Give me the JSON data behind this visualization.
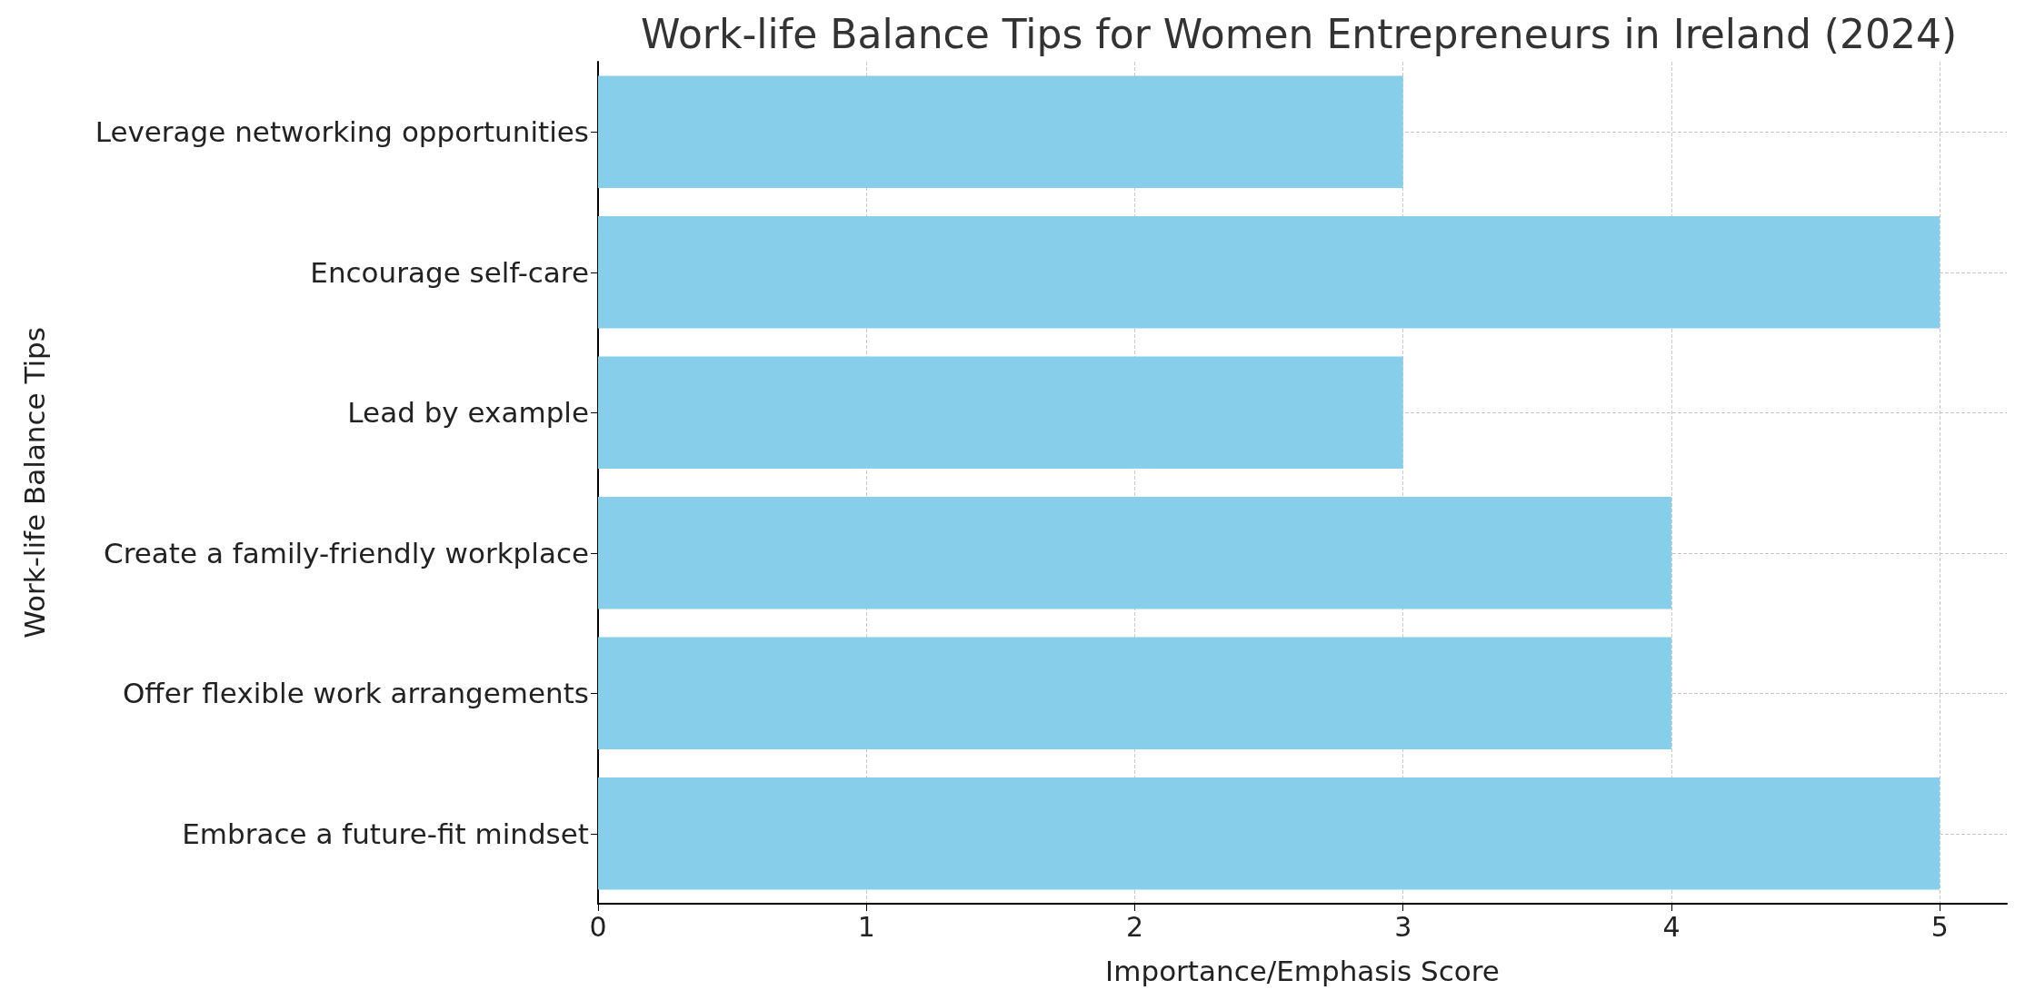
{
  "chart_data": {
    "type": "bar",
    "orientation": "horizontal",
    "title": "Work-life Balance Tips for Women Entrepreneurs in Ireland (2024)",
    "xlabel": "Importance/Emphasis Score",
    "ylabel": "Work-life Balance Tips",
    "categories": [
      "Leverage networking opportunities",
      "Encourage self-care",
      "Lead by example",
      "Create a family-friendly workplace",
      "Offer flexible work arrangements",
      "Embrace a future-fit mindset"
    ],
    "values": [
      3,
      5,
      3,
      4,
      4,
      5
    ],
    "color": "#87ceeb",
    "xlim": [
      0,
      5.25
    ],
    "xticks": [
      0,
      1,
      2,
      3,
      4,
      5
    ],
    "grid": true,
    "line_style": "dashed"
  }
}
